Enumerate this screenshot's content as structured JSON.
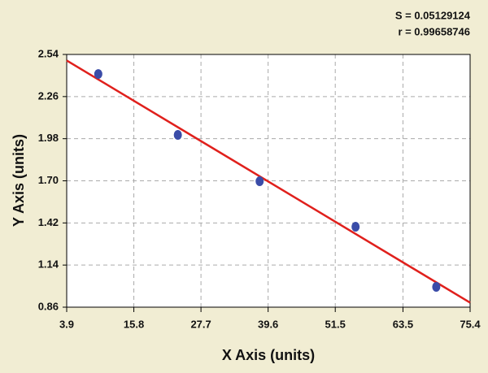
{
  "chart_data": {
    "type": "scatter",
    "annotations": [
      "S = 0.05129124",
      "r = 0.99658746"
    ],
    "x_label": "X Axis (units)",
    "y_label": "Y Axis (units)",
    "xlim": [
      3.9,
      75.4
    ],
    "xticks": [
      3.9,
      15.8,
      27.7,
      39.6,
      51.5,
      63.5,
      75.4
    ],
    "ylim": [
      0.86,
      2.54
    ],
    "yticks": [
      0.86,
      1.14,
      1.42,
      {
        "value": 1.7,
        "label": "1.70"
      },
      1.98,
      2.26,
      2.54
    ],
    "grid": true,
    "points": {
      "x": [
        9.5,
        23.6,
        38.1,
        55.1,
        69.4
      ],
      "values": [
        2.41,
        2.005,
        1.697,
        1.395,
        0.995
      ],
      "color": "#3a4ca8"
    },
    "fit_line": {
      "x": [
        3.9,
        75.4
      ],
      "values": [
        2.5,
        0.89
      ],
      "color": "#e0201c"
    }
  }
}
